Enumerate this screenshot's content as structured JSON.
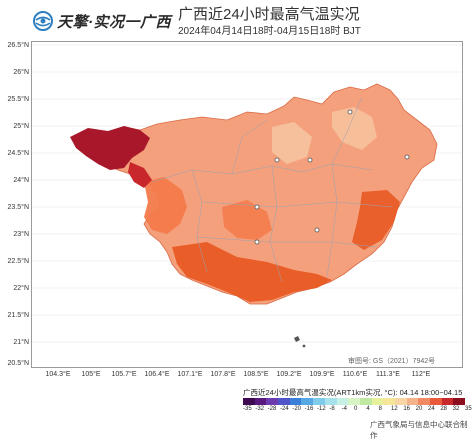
{
  "header": {
    "logo_text": "天擎·实况一广西",
    "title": "广西近24小时最高气温实况",
    "subtitle": "2024年04月14日18时-04月15日18时 BJT"
  },
  "axes": {
    "lat_labels": [
      "26.5°N",
      "26°N",
      "25.5°N",
      "25°N",
      "24.5°N",
      "24°N",
      "23.5°N",
      "23°N",
      "22.5°N",
      "22°N",
      "21.5°N",
      "21°N",
      "20.5°N"
    ],
    "lon_labels": [
      "104.3°E",
      "105°E",
      "105.7°E",
      "106.4°E",
      "107.1°E",
      "107.8°E",
      "108.5°E",
      "109.2°E",
      "109.9°E",
      "110.6°E",
      "111.3°E",
      "112°E"
    ]
  },
  "map": {
    "approval_no": "审图号: GS（2021）7942号",
    "colors": {
      "very_hot": "#a8182a",
      "hot_dark": "#e8551f",
      "hot": "#f37a4b",
      "warm": "#f4a07c",
      "mild": "#f7c3a0",
      "boundary": "#9aa3b0"
    }
  },
  "legend": {
    "title": "广西近24小时最高气温实况(ART1km实况, °C): 04.14 18:00~04.15 18:00",
    "values": [
      "-35",
      "-32",
      "-28",
      "-24",
      "-20",
      "-16",
      "-12",
      "-8",
      "-4",
      "0",
      "4",
      "8",
      "12",
      "16",
      "20",
      "24",
      "28",
      "32",
      "35"
    ],
    "colors": [
      "#3d0a52",
      "#5a1a7d",
      "#6d3bb0",
      "#4f55c8",
      "#3b7fd8",
      "#56a8e5",
      "#7ecbea",
      "#a7e2ec",
      "#c7f0e4",
      "#d7f4c4",
      "#bfe8a0",
      "#e7f09a",
      "#f5e69a",
      "#f8d5a5",
      "#f5b38c",
      "#f18a63",
      "#e85a3a",
      "#c8282c",
      "#8c0f1f"
    ]
  },
  "footer": {
    "credit": "广西气象局与信息中心联合制作"
  }
}
